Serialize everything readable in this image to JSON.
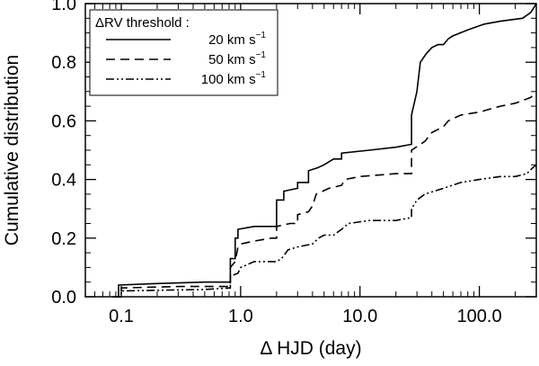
{
  "chart_data": {
    "type": "line",
    "xlabel": "Δ HJD (day)",
    "ylabel": "Cumulative distribution",
    "x_scale": "log",
    "xlim": [
      0.05,
      300
    ],
    "ylim": [
      0.0,
      1.0
    ],
    "x_ticks": [
      {
        "value": 0.1,
        "label": "0.1"
      },
      {
        "value": 1,
        "label": "1.0"
      },
      {
        "value": 10,
        "label": "10.0"
      },
      {
        "value": 100,
        "label": "100.0"
      }
    ],
    "y_ticks": [
      {
        "value": 0.0,
        "label": "0.0"
      },
      {
        "value": 0.2,
        "label": "0.2"
      },
      {
        "value": 0.4,
        "label": "0.4"
      },
      {
        "value": 0.6,
        "label": "0.6"
      },
      {
        "value": 0.8,
        "label": "0.8"
      },
      {
        "value": 1.0,
        "label": "1.0"
      }
    ],
    "grid": false,
    "legend": {
      "title": "ΔRV threshold :",
      "placement": "top-left",
      "entries": [
        {
          "text": "20 km s",
          "sup": "−1",
          "style": "solid"
        },
        {
          "text": "50 km s",
          "sup": "−1",
          "style": "dashed"
        },
        {
          "text": "100 km s",
          "sup": "−1",
          "style": "dash-dot-dot"
        }
      ]
    },
    "series": [
      {
        "style": "solid",
        "points": [
          [
            0.085,
            0.0
          ],
          [
            0.095,
            0.0
          ],
          [
            0.095,
            0.04
          ],
          [
            0.2,
            0.045
          ],
          [
            0.5,
            0.05
          ],
          [
            0.82,
            0.05
          ],
          [
            0.82,
            0.13
          ],
          [
            0.9,
            0.13
          ],
          [
            0.9,
            0.2
          ],
          [
            0.95,
            0.2
          ],
          [
            0.95,
            0.23
          ],
          [
            1.3,
            0.24
          ],
          [
            2.0,
            0.24
          ],
          [
            2.0,
            0.33
          ],
          [
            2.3,
            0.33
          ],
          [
            2.3,
            0.36
          ],
          [
            3.0,
            0.37
          ],
          [
            3.0,
            0.39
          ],
          [
            3.7,
            0.39
          ],
          [
            3.7,
            0.43
          ],
          [
            4.4,
            0.44
          ],
          [
            5.0,
            0.45
          ],
          [
            6.0,
            0.47
          ],
          [
            7.0,
            0.47
          ],
          [
            7.0,
            0.49
          ],
          [
            12,
            0.5
          ],
          [
            20,
            0.51
          ],
          [
            27,
            0.52
          ],
          [
            27,
            0.62
          ],
          [
            30,
            0.7
          ],
          [
            32,
            0.8
          ],
          [
            36,
            0.83
          ],
          [
            40,
            0.85
          ],
          [
            45,
            0.86
          ],
          [
            50,
            0.86
          ],
          [
            55,
            0.88
          ],
          [
            60,
            0.89
          ],
          [
            80,
            0.91
          ],
          [
            110,
            0.93
          ],
          [
            150,
            0.94
          ],
          [
            230,
            0.95
          ],
          [
            270,
            0.97
          ],
          [
            290,
            0.99
          ],
          [
            300,
            1.0
          ]
        ]
      },
      {
        "style": "dashed",
        "points": [
          [
            0.085,
            0.0
          ],
          [
            0.1,
            0.0
          ],
          [
            0.1,
            0.03
          ],
          [
            0.3,
            0.035
          ],
          [
            0.82,
            0.035
          ],
          [
            0.82,
            0.1
          ],
          [
            0.9,
            0.12
          ],
          [
            0.95,
            0.17
          ],
          [
            1.0,
            0.18
          ],
          [
            1.3,
            0.19
          ],
          [
            1.8,
            0.2
          ],
          [
            2.0,
            0.2
          ],
          [
            2.0,
            0.24
          ],
          [
            2.6,
            0.25
          ],
          [
            3.0,
            0.25
          ],
          [
            3.0,
            0.28
          ],
          [
            3.7,
            0.29
          ],
          [
            4.0,
            0.31
          ],
          [
            4.3,
            0.35
          ],
          [
            5.5,
            0.37
          ],
          [
            7.0,
            0.38
          ],
          [
            7.5,
            0.4
          ],
          [
            10,
            0.41
          ],
          [
            20,
            0.42
          ],
          [
            27,
            0.42
          ],
          [
            27,
            0.5
          ],
          [
            35,
            0.53
          ],
          [
            40,
            0.56
          ],
          [
            50,
            0.58
          ],
          [
            55,
            0.6
          ],
          [
            70,
            0.62
          ],
          [
            100,
            0.63
          ],
          [
            150,
            0.65
          ],
          [
            200,
            0.66
          ],
          [
            270,
            0.68
          ],
          [
            300,
            0.7
          ]
        ]
      },
      {
        "style": "dash-dot-dot",
        "points": [
          [
            0.085,
            0.0
          ],
          [
            0.1,
            0.0
          ],
          [
            0.1,
            0.02
          ],
          [
            0.5,
            0.025
          ],
          [
            0.82,
            0.03
          ],
          [
            0.82,
            0.07
          ],
          [
            0.95,
            0.08
          ],
          [
            1.0,
            0.1
          ],
          [
            1.3,
            0.12
          ],
          [
            2.0,
            0.12
          ],
          [
            2.2,
            0.13
          ],
          [
            2.5,
            0.16
          ],
          [
            3.0,
            0.17
          ],
          [
            4.0,
            0.18
          ],
          [
            4.5,
            0.2
          ],
          [
            5.0,
            0.21
          ],
          [
            6.0,
            0.21
          ],
          [
            7.0,
            0.23
          ],
          [
            8.0,
            0.25
          ],
          [
            12,
            0.26
          ],
          [
            20,
            0.26
          ],
          [
            27,
            0.27
          ],
          [
            27,
            0.3
          ],
          [
            30,
            0.33
          ],
          [
            35,
            0.35
          ],
          [
            50,
            0.37
          ],
          [
            70,
            0.39
          ],
          [
            100,
            0.4
          ],
          [
            150,
            0.41
          ],
          [
            200,
            0.41
          ],
          [
            250,
            0.42
          ],
          [
            280,
            0.44
          ],
          [
            300,
            0.45
          ]
        ]
      }
    ]
  }
}
